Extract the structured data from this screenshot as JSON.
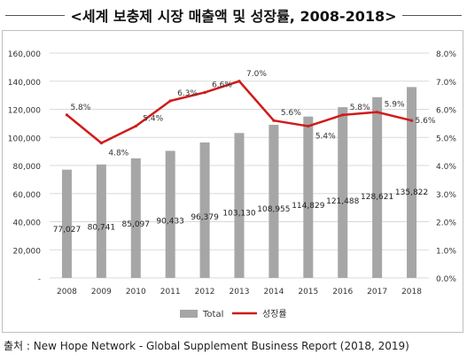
{
  "title": "<세계 보충제 시장 매출액 및 성장률, 2008-2018>",
  "source": "출처 : New Hope Network - Global Supplement Business Report (2018, 2019)",
  "chart_data": {
    "type": "bar",
    "categories": [
      "2008",
      "2009",
      "2010",
      "2011",
      "2012",
      "2013",
      "2014",
      "2015",
      "2016",
      "2017",
      "2018"
    ],
    "series": [
      {
        "name": "Total",
        "type": "bar",
        "axis": "left",
        "color": "#a6a6a6",
        "values": [
          77027,
          80741,
          85097,
          90433,
          96379,
          103130,
          108955,
          114829,
          121488,
          128621,
          135822
        ],
        "labels": [
          "77,027",
          "80,741",
          "85,097",
          "90,433",
          "96,379",
          "103,130",
          "108,955",
          "114,829",
          "121,488",
          "128,621",
          "135,822"
        ]
      },
      {
        "name": "성장률",
        "type": "line",
        "axis": "right",
        "color": "#d11a1a",
        "values": [
          5.8,
          4.8,
          5.4,
          6.3,
          6.6,
          7.0,
          5.6,
          5.4,
          5.8,
          5.9,
          5.6
        ],
        "labels": [
          "5.8%",
          "4.8%",
          "5.4%",
          "6.3%",
          "6.6%",
          "7.0%",
          "5.6%",
          "5.4%",
          "5.8%",
          "5.9%",
          "5.6%"
        ]
      }
    ],
    "y_left": {
      "ylim": [
        0,
        160000
      ],
      "ticks": [
        "-",
        "20,000",
        "40,000",
        "60,000",
        "80,000",
        "100,000",
        "120,000",
        "140,000",
        "160,000"
      ]
    },
    "y_right": {
      "ylim": [
        0,
        8
      ],
      "ticks": [
        "0.0%",
        "1.0%",
        "2.0%",
        "3.0%",
        "4.0%",
        "5.0%",
        "6.0%",
        "7.0%",
        "8.0%"
      ]
    },
    "grid": true,
    "legend_position": "bottom"
  }
}
